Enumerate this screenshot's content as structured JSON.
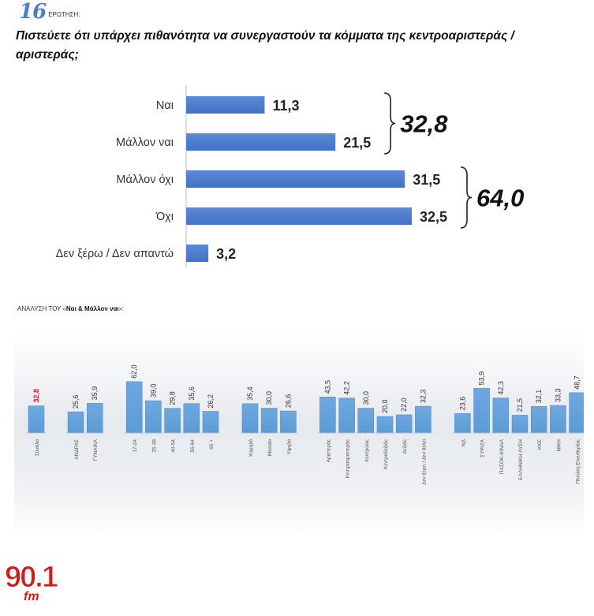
{
  "header": {
    "question_number": "16",
    "question_keyword": "ΕΡΩΤΗΣΗ:",
    "question_text": "Πιστεύετε ότι υπάρχει πιθανότητα να συνεργαστούν τα κόμματα της κεντροαριστεράς / αριστεράς;"
  },
  "analysis_label": {
    "prefix": "ΑΝΑΛΥΣΗ ΤΟΥ «",
    "bold": "Ναι & Μάλλον ναι",
    "suffix": "»:"
  },
  "colors": {
    "bar": "#4472c4",
    "bar_light": "#5b9bd5",
    "highlight": "#e0161b"
  },
  "logo": {
    "main": "90.1",
    "sub": "fm"
  },
  "chart_data": [
    {
      "type": "bar",
      "orientation": "horizontal",
      "categories": [
        "Ναι",
        "Μάλλον ναι",
        "Μάλλον όχι",
        "Όχι",
        "Δεν ξέρω / Δεν απαντώ"
      ],
      "values": [
        11.3,
        21.5,
        31.5,
        32.5,
        3.2
      ],
      "value_labels": [
        "11,3",
        "21,5",
        "31,5",
        "32,5",
        "3,2"
      ],
      "groups": [
        {
          "label": "32,8",
          "from": 0,
          "to": 1
        },
        {
          "label": "64,0",
          "from": 2,
          "to": 3
        }
      ],
      "xlim": [
        0,
        40
      ]
    },
    {
      "type": "bar",
      "orientation": "vertical",
      "groups": [
        {
          "categories": [
            "Σύνολο"
          ],
          "values": [
            32.8
          ],
          "value_labels": [
            "32,8"
          ],
          "highlight": true
        },
        {
          "categories": [
            "ΑΝΔΡΑΣ",
            "ΓΥΝΑΙΚΑ"
          ],
          "values": [
            25.6,
            35.9
          ],
          "value_labels": [
            "25,6",
            "35,9"
          ]
        },
        {
          "categories": [
            "17-24",
            "25-39",
            "40-54",
            "55-64",
            "65 +"
          ],
          "values": [
            62.0,
            39.0,
            29.8,
            35.6,
            26.2
          ],
          "value_labels": [
            "62,0",
            "39,0",
            "29,8",
            "35,6",
            "26,2"
          ]
        },
        {
          "categories": [
            "Χαμηλό",
            "Μεσαίο",
            "Υψηλό"
          ],
          "values": [
            35.4,
            30.0,
            26.6
          ],
          "value_labels": [
            "35,4",
            "30,0",
            "26,6"
          ]
        },
        {
          "categories": [
            "Αριστερός",
            "Κεντροαριστερός",
            "Κεντρώος",
            "Κεντροδεξιός",
            "Δεξιός",
            "Δεν ξέρει / Δεν θέλει"
          ],
          "values": [
            43.5,
            42.2,
            30.0,
            20.0,
            22.0,
            32.3
          ],
          "value_labels": [
            "43,5",
            "42,2",
            "30,0",
            "20,0",
            "22,0",
            "32,3"
          ]
        },
        {
          "categories": [
            "ΝΔ",
            "ΣΥΡΙΖΑ",
            "ΠΑΣΟΚ-ΚΙΝΑΛ",
            "ΕΛΛΗΝΙΚΗ ΛΥΣΗ",
            "ΚΚΕ",
            "ΝΙΚΗ",
            "Πλεύση Ελευθερίας"
          ],
          "values": [
            23.6,
            53.9,
            42.3,
            21.5,
            32.1,
            33.3,
            48.7
          ],
          "value_labels": [
            "23,6",
            "53,9",
            "42,3",
            "21,5",
            "32,1",
            "33,3",
            "48,7"
          ]
        }
      ],
      "ylim": [
        0,
        70
      ]
    }
  ]
}
